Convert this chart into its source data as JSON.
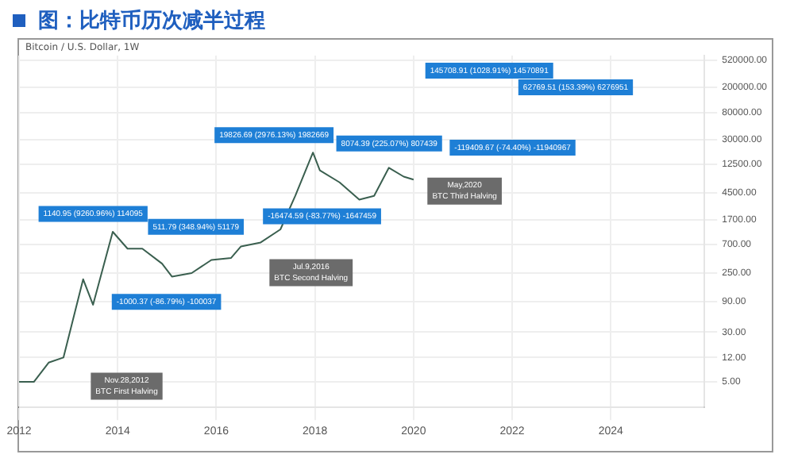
{
  "chart_data": {
    "type": "line",
    "title": "图：比特币历次减半过程",
    "subtitle": "Bitcoin / U.S. Dollar, 1W",
    "x": [
      2012.0,
      2012.3,
      2012.6,
      2012.9,
      2013.3,
      2013.5,
      2013.9,
      2014.2,
      2014.5,
      2014.9,
      2015.1,
      2015.5,
      2015.9,
      2016.3,
      2016.5,
      2016.9,
      2017.3,
      2017.6,
      2017.96,
      2018.1,
      2018.5,
      2018.9,
      2019.2,
      2019.5,
      2019.8,
      2020.0
    ],
    "series": [
      {
        "color": "#3a5f4f",
        "values": [
          5,
          5,
          10,
          12,
          200,
          80,
          1100,
          600,
          600,
          350,
          220,
          250,
          400,
          430,
          650,
          750,
          1200,
          4000,
          19000,
          10000,
          6500,
          3500,
          4000,
          11000,
          8000,
          7200
        ]
      }
    ],
    "log": true,
    "grid": true,
    "legend": false,
    "marker": "none",
    "line_style": "solid",
    "xlim": [
      2012,
      2025.9
    ],
    "xticks": [
      2012,
      2014,
      2016,
      2018,
      2020,
      2022,
      2024
    ],
    "ylim": [
      2,
      620000
    ],
    "yticks": [
      {
        "value": 5,
        "label": "5.00"
      },
      {
        "value": 12,
        "label": "12.00"
      },
      {
        "value": 30,
        "label": "30.00"
      },
      {
        "value": 90,
        "label": "90.00"
      },
      {
        "value": 250,
        "label": "250.00"
      },
      {
        "value": 700,
        "label": "700.00"
      },
      {
        "value": 1700,
        "label": "1700.00"
      },
      {
        "value": 4500,
        "label": "4500.00"
      },
      {
        "value": 12500,
        "label": "12500.00"
      },
      {
        "value": 30000,
        "label": "30000.00"
      },
      {
        "value": 80000,
        "label": "80000.00"
      },
      {
        "value": 200000,
        "label": "200000.00"
      },
      {
        "value": 520000,
        "label": "520000.00"
      }
    ],
    "annotations": [
      "1140.95 (9260.96%) 114095",
      "-1000.37 (-86.79%) -100037",
      "511.79 (348.94%) 51179",
      "19826.69 (2976.13%) 1982669",
      "-16474.59 (-83.77%) -1647459",
      "8074.39 (225.07%) 807439",
      "145708.91 (1028.91%) 14570891",
      "-119409.67 (-74.40%) -11940967",
      "62769.51 (153.39%) 6276951",
      "Nov.28,2012\nBTC First Halving",
      "Jul.9,2016\nBTC Second Halving",
      "May,2020\nBTC Third Halving"
    ]
  }
}
